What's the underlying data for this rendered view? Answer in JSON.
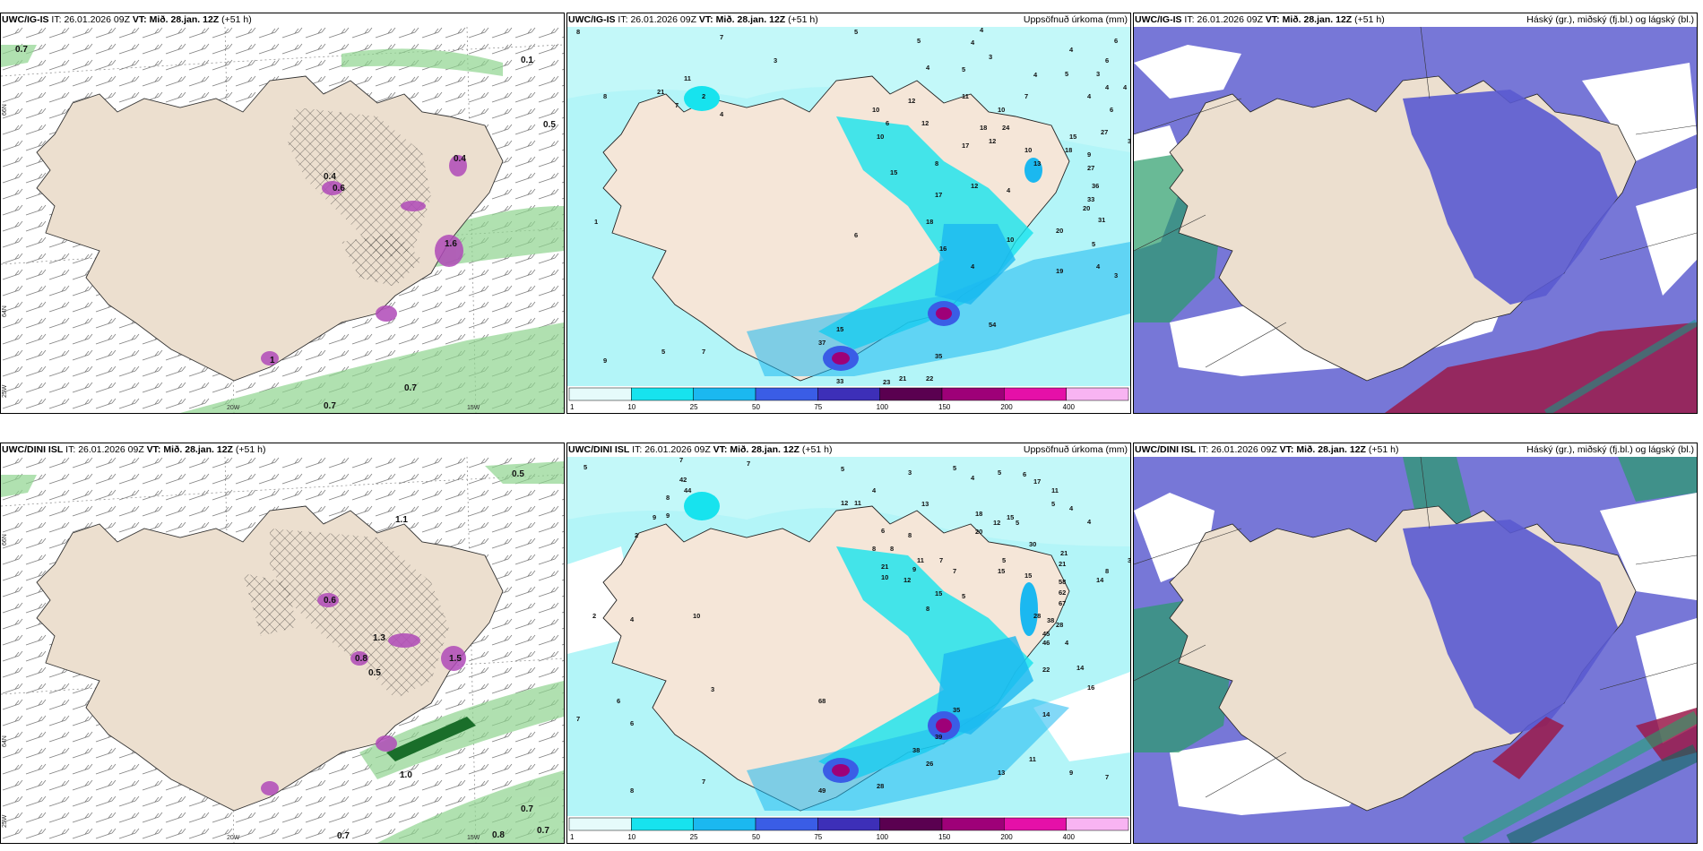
{
  "panels": [
    {
      "model": "UWC/IG-IS",
      "it_label": "IT:",
      "it_value": "26.01.2026 09Z",
      "vt_label": "VT:",
      "vt_value": "Mið. 28.jan. 12Z",
      "lead": "(+51 h)",
      "right_title": ""
    },
    {
      "model": "UWC/IG-IS",
      "it_label": "IT:",
      "it_value": "26.01.2026 09Z",
      "vt_label": "VT:",
      "vt_value": "Mið. 28.jan. 12Z",
      "lead": "(+51 h)",
      "right_title": "Uppsöfnuð úrkoma (mm)"
    },
    {
      "model": "UWC/IG-IS",
      "it_label": "IT:",
      "it_value": "26.01.2026 09Z",
      "vt_label": "VT:",
      "vt_value": "Mið. 28.jan. 12Z",
      "lead": "(+51 h)",
      "right_title": "Háský (gr.), miðský (fj.bl.) og lágský (bl.)"
    },
    {
      "model": "UWC/DINI ISL",
      "it_label": "IT:",
      "it_value": "26.01.2026 09Z",
      "vt_label": "VT:",
      "vt_value": "Mið. 28.jan. 12Z",
      "lead": "(+51 h)",
      "right_title": ""
    },
    {
      "model": "UWC/DINI ISL",
      "it_label": "IT:",
      "it_value": "26.01.2026 09Z",
      "vt_label": "VT:",
      "vt_value": "Mið. 28.jan. 12Z",
      "lead": "(+51 h)",
      "right_title": "Uppsöfnuð úrkoma (mm)"
    },
    {
      "model": "UWC/DINI ISL",
      "it_label": "IT:",
      "it_value": "26.01.2026 09Z",
      "vt_label": "VT:",
      "vt_value": "Mið. 28.jan. 12Z",
      "lead": "(+51 h)",
      "right_title": "Háský (gr.), miðský (fj.bl.) og lágský (bl.)"
    }
  ],
  "axis_labels": {
    "lat_66": "66N",
    "lat_64": "64N",
    "lon_25": "25W",
    "lon_20": "20W",
    "lon_15": "15W"
  },
  "wind_labels_top": [
    "0.7",
    "0.1",
    "0.5",
    "0.7",
    "0.7",
    "0.4",
    "0.6",
    "0.4",
    "1",
    "1.6"
  ],
  "wind_labels_bottom": [
    "0.5",
    "1.0",
    "0.7",
    "0.8",
    "0.7",
    "1.1",
    "1.3",
    "0.6",
    "0.8",
    "0.5",
    "0.7",
    "1.5"
  ],
  "precip_colorbar_ticks": [
    "1",
    "10",
    "25",
    "50",
    "75",
    "100",
    "150",
    "200",
    "400"
  ],
  "precip_colors": [
    "#e6fbfb",
    "#17e3ee",
    "#1bb8f0",
    "#3a5de6",
    "#3d2fb8",
    "#5a0050",
    "#9e0078",
    "#e510a8",
    "#f8b4f2"
  ],
  "precip_values_top": [
    "8",
    "7",
    "5",
    "4",
    "3",
    "5",
    "4",
    "4",
    "6",
    "6",
    "4",
    "5",
    "3",
    "3",
    "5",
    "4",
    "4",
    "4",
    "4",
    "8",
    "21",
    "11",
    "10",
    "6",
    "10",
    "11",
    "10",
    "7",
    "18",
    "24",
    "12",
    "12",
    "15",
    "17",
    "8",
    "12",
    "9",
    "10",
    "18",
    "27",
    "6",
    "13",
    "27",
    "3",
    "15",
    "17",
    "12",
    "36",
    "4",
    "20",
    "33",
    "31",
    "2",
    "7",
    "4",
    "18",
    "16",
    "20",
    "10",
    "5",
    "1",
    "6",
    "4",
    "19",
    "3",
    "4",
    "37",
    "15",
    "54",
    "9",
    "5",
    "7",
    "35",
    "22",
    "33",
    "21",
    "23"
  ],
  "precip_values_bottom": [
    "5",
    "7",
    "7",
    "5",
    "3",
    "5",
    "4",
    "5",
    "6",
    "42",
    "17",
    "11",
    "8",
    "44",
    "12",
    "11",
    "4",
    "13",
    "18",
    "15",
    "5",
    "9",
    "4",
    "9",
    "4",
    "20",
    "12",
    "5",
    "6",
    "8",
    "2",
    "8",
    "30",
    "8",
    "21",
    "11",
    "3",
    "21",
    "9",
    "5",
    "10",
    "12",
    "7",
    "21",
    "8",
    "7",
    "14",
    "15",
    "58",
    "62",
    "15",
    "67",
    "28",
    "38",
    "15",
    "5",
    "10",
    "8",
    "45",
    "46",
    "2",
    "4",
    "28",
    "4",
    "22",
    "14",
    "16",
    "3",
    "7",
    "6",
    "68",
    "35",
    "14",
    "39",
    "38",
    "13",
    "11",
    "26",
    "9",
    "49",
    "7",
    "6",
    "8",
    "7",
    "28"
  ],
  "cloud_legend": {
    "high": "Háský (gr.)",
    "mid": "miðský (fj.bl.)",
    "low": "lágský (bl.)"
  }
}
